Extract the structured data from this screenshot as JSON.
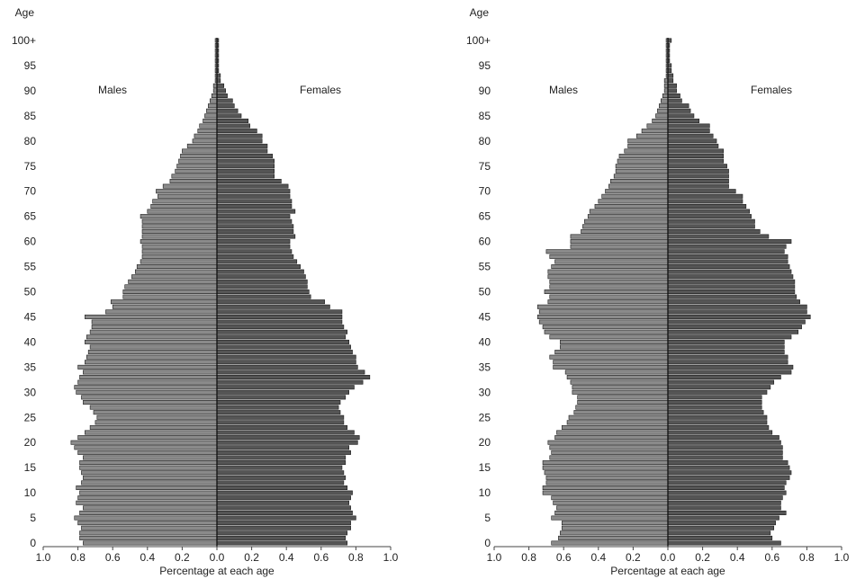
{
  "chart_data": [
    {
      "type": "bar",
      "orientation": "horizontal-population-pyramid",
      "ylabel": "Age",
      "xlabel": "Percentage at each age",
      "left_group_label": "Males",
      "right_group_label": "Females",
      "ages": [
        0,
        1,
        2,
        3,
        4,
        5,
        6,
        7,
        8,
        9,
        10,
        11,
        12,
        13,
        14,
        15,
        16,
        17,
        18,
        19,
        20,
        21,
        22,
        23,
        24,
        25,
        26,
        27,
        28,
        29,
        30,
        31,
        32,
        33,
        34,
        35,
        36,
        37,
        38,
        39,
        40,
        41,
        42,
        43,
        44,
        45,
        46,
        47,
        48,
        49,
        50,
        51,
        52,
        53,
        54,
        55,
        56,
        57,
        58,
        59,
        60,
        61,
        62,
        63,
        64,
        65,
        66,
        67,
        68,
        69,
        70,
        71,
        72,
        73,
        74,
        75,
        76,
        77,
        78,
        79,
        80,
        81,
        82,
        83,
        84,
        85,
        86,
        87,
        88,
        89,
        90,
        91,
        92,
        93,
        94,
        95,
        96,
        97,
        98,
        99,
        100
      ],
      "y_tick_labels": [
        "0",
        "5",
        "10",
        "15",
        "20",
        "25",
        "30",
        "35",
        "40",
        "45",
        "50",
        "55",
        "60",
        "65",
        "70",
        "75",
        "80",
        "85",
        "90",
        "95",
        "100+"
      ],
      "x_tick_labels": [
        "1.0",
        "0.8",
        "0.6",
        "0.4",
        "0.2",
        "0.0",
        "0.2",
        "0.4",
        "0.6",
        "0.8",
        "1.0"
      ],
      "xlim": [
        0,
        1.0
      ],
      "series": [
        {
          "name": "Males",
          "values": [
            0.77,
            0.79,
            0.79,
            0.78,
            0.8,
            0.82,
            0.79,
            0.77,
            0.81,
            0.8,
            0.79,
            0.81,
            0.78,
            0.77,
            0.78,
            0.79,
            0.79,
            0.77,
            0.8,
            0.82,
            0.84,
            0.8,
            0.76,
            0.73,
            0.7,
            0.69,
            0.71,
            0.73,
            0.77,
            0.78,
            0.81,
            0.82,
            0.8,
            0.79,
            0.77,
            0.8,
            0.76,
            0.75,
            0.74,
            0.73,
            0.76,
            0.75,
            0.73,
            0.72,
            0.72,
            0.76,
            0.64,
            0.6,
            0.61,
            0.54,
            0.54,
            0.53,
            0.51,
            0.49,
            0.47,
            0.46,
            0.44,
            0.43,
            0.43,
            0.43,
            0.44,
            0.43,
            0.43,
            0.43,
            0.43,
            0.44,
            0.4,
            0.38,
            0.37,
            0.34,
            0.35,
            0.31,
            0.27,
            0.26,
            0.24,
            0.23,
            0.22,
            0.21,
            0.2,
            0.17,
            0.14,
            0.13,
            0.11,
            0.1,
            0.08,
            0.07,
            0.06,
            0.05,
            0.04,
            0.03,
            0.02,
            0.02,
            0.01,
            0.01,
            0.01,
            0.01,
            0.01,
            0.01,
            0.01,
            0.01,
            0.01
          ],
          "color": "#8a8a8a"
        },
        {
          "name": "Females",
          "values": [
            0.75,
            0.74,
            0.75,
            0.77,
            0.77,
            0.8,
            0.78,
            0.77,
            0.76,
            0.77,
            0.78,
            0.75,
            0.73,
            0.74,
            0.73,
            0.72,
            0.74,
            0.74,
            0.77,
            0.76,
            0.81,
            0.82,
            0.79,
            0.75,
            0.73,
            0.73,
            0.71,
            0.7,
            0.71,
            0.74,
            0.76,
            0.79,
            0.84,
            0.88,
            0.85,
            0.81,
            0.8,
            0.8,
            0.78,
            0.77,
            0.76,
            0.74,
            0.75,
            0.73,
            0.72,
            0.72,
            0.72,
            0.65,
            0.62,
            0.54,
            0.53,
            0.52,
            0.52,
            0.51,
            0.5,
            0.48,
            0.46,
            0.44,
            0.43,
            0.42,
            0.42,
            0.45,
            0.44,
            0.44,
            0.43,
            0.42,
            0.45,
            0.43,
            0.43,
            0.42,
            0.42,
            0.41,
            0.37,
            0.33,
            0.33,
            0.33,
            0.33,
            0.32,
            0.29,
            0.29,
            0.26,
            0.26,
            0.23,
            0.19,
            0.18,
            0.14,
            0.12,
            0.1,
            0.09,
            0.06,
            0.05,
            0.04,
            0.02,
            0.02,
            0.01,
            0.01,
            0.01,
            0.01,
            0.01,
            0.01,
            0.01
          ],
          "color": "#555555"
        }
      ]
    },
    {
      "type": "bar",
      "orientation": "horizontal-population-pyramid",
      "ylabel": "Age",
      "xlabel": "Percentage at each age",
      "left_group_label": "Males",
      "right_group_label": "Females",
      "ages": [
        0,
        1,
        2,
        3,
        4,
        5,
        6,
        7,
        8,
        9,
        10,
        11,
        12,
        13,
        14,
        15,
        16,
        17,
        18,
        19,
        20,
        21,
        22,
        23,
        24,
        25,
        26,
        27,
        28,
        29,
        30,
        31,
        32,
        33,
        34,
        35,
        36,
        37,
        38,
        39,
        40,
        41,
        42,
        43,
        44,
        45,
        46,
        47,
        48,
        49,
        50,
        51,
        52,
        53,
        54,
        55,
        56,
        57,
        58,
        59,
        60,
        61,
        62,
        63,
        64,
        65,
        66,
        67,
        68,
        69,
        70,
        71,
        72,
        73,
        74,
        75,
        76,
        77,
        78,
        79,
        80,
        81,
        82,
        83,
        84,
        85,
        86,
        87,
        88,
        89,
        90,
        91,
        92,
        93,
        94,
        95,
        96,
        97,
        98,
        99,
        100
      ],
      "y_tick_labels": [
        "0",
        "5",
        "10",
        "15",
        "20",
        "25",
        "30",
        "35",
        "40",
        "45",
        "50",
        "55",
        "60",
        "65",
        "70",
        "75",
        "80",
        "85",
        "90",
        "95",
        "100+"
      ],
      "x_tick_labels": [
        "1.0",
        "0.8",
        "0.6",
        "0.4",
        "0.2",
        "0.0",
        "0.2",
        "0.4",
        "0.6",
        "0.8",
        "1.0"
      ],
      "xlim": [
        0,
        1.0
      ],
      "series": [
        {
          "name": "Males",
          "values": [
            0.67,
            0.63,
            0.62,
            0.61,
            0.61,
            0.67,
            0.65,
            0.64,
            0.66,
            0.67,
            0.72,
            0.72,
            0.7,
            0.7,
            0.71,
            0.72,
            0.72,
            0.68,
            0.67,
            0.68,
            0.69,
            0.65,
            0.64,
            0.61,
            0.58,
            0.57,
            0.54,
            0.53,
            0.52,
            0.52,
            0.55,
            0.55,
            0.56,
            0.58,
            0.59,
            0.66,
            0.66,
            0.68,
            0.65,
            0.62,
            0.62,
            0.68,
            0.71,
            0.72,
            0.74,
            0.75,
            0.74,
            0.75,
            0.69,
            0.68,
            0.71,
            0.68,
            0.68,
            0.69,
            0.69,
            0.67,
            0.65,
            0.68,
            0.7,
            0.56,
            0.56,
            0.56,
            0.5,
            0.49,
            0.48,
            0.46,
            0.45,
            0.42,
            0.4,
            0.38,
            0.36,
            0.34,
            0.33,
            0.31,
            0.3,
            0.3,
            0.29,
            0.28,
            0.25,
            0.23,
            0.23,
            0.18,
            0.15,
            0.12,
            0.09,
            0.07,
            0.06,
            0.05,
            0.04,
            0.03,
            0.02,
            0.02,
            0.02,
            0.01,
            0.01,
            0.01,
            0.01,
            0.01,
            0.01,
            0.01,
            0.01
          ],
          "color": "#8a8a8a"
        },
        {
          "name": "Females",
          "values": [
            0.65,
            0.6,
            0.59,
            0.61,
            0.62,
            0.64,
            0.68,
            0.65,
            0.65,
            0.66,
            0.68,
            0.67,
            0.68,
            0.7,
            0.71,
            0.7,
            0.69,
            0.66,
            0.66,
            0.66,
            0.65,
            0.64,
            0.6,
            0.58,
            0.57,
            0.57,
            0.55,
            0.54,
            0.54,
            0.54,
            0.57,
            0.59,
            0.61,
            0.65,
            0.71,
            0.72,
            0.69,
            0.69,
            0.67,
            0.67,
            0.67,
            0.71,
            0.75,
            0.77,
            0.79,
            0.82,
            0.8,
            0.8,
            0.76,
            0.74,
            0.73,
            0.73,
            0.73,
            0.72,
            0.71,
            0.7,
            0.69,
            0.69,
            0.67,
            0.68,
            0.71,
            0.58,
            0.53,
            0.5,
            0.5,
            0.48,
            0.47,
            0.45,
            0.43,
            0.43,
            0.39,
            0.35,
            0.35,
            0.35,
            0.35,
            0.34,
            0.32,
            0.32,
            0.32,
            0.29,
            0.28,
            0.26,
            0.24,
            0.24,
            0.18,
            0.15,
            0.13,
            0.12,
            0.08,
            0.07,
            0.05,
            0.05,
            0.03,
            0.03,
            0.02,
            0.02,
            0.01,
            0.01,
            0.01,
            0.01,
            0.02
          ],
          "color": "#555555"
        }
      ]
    }
  ]
}
